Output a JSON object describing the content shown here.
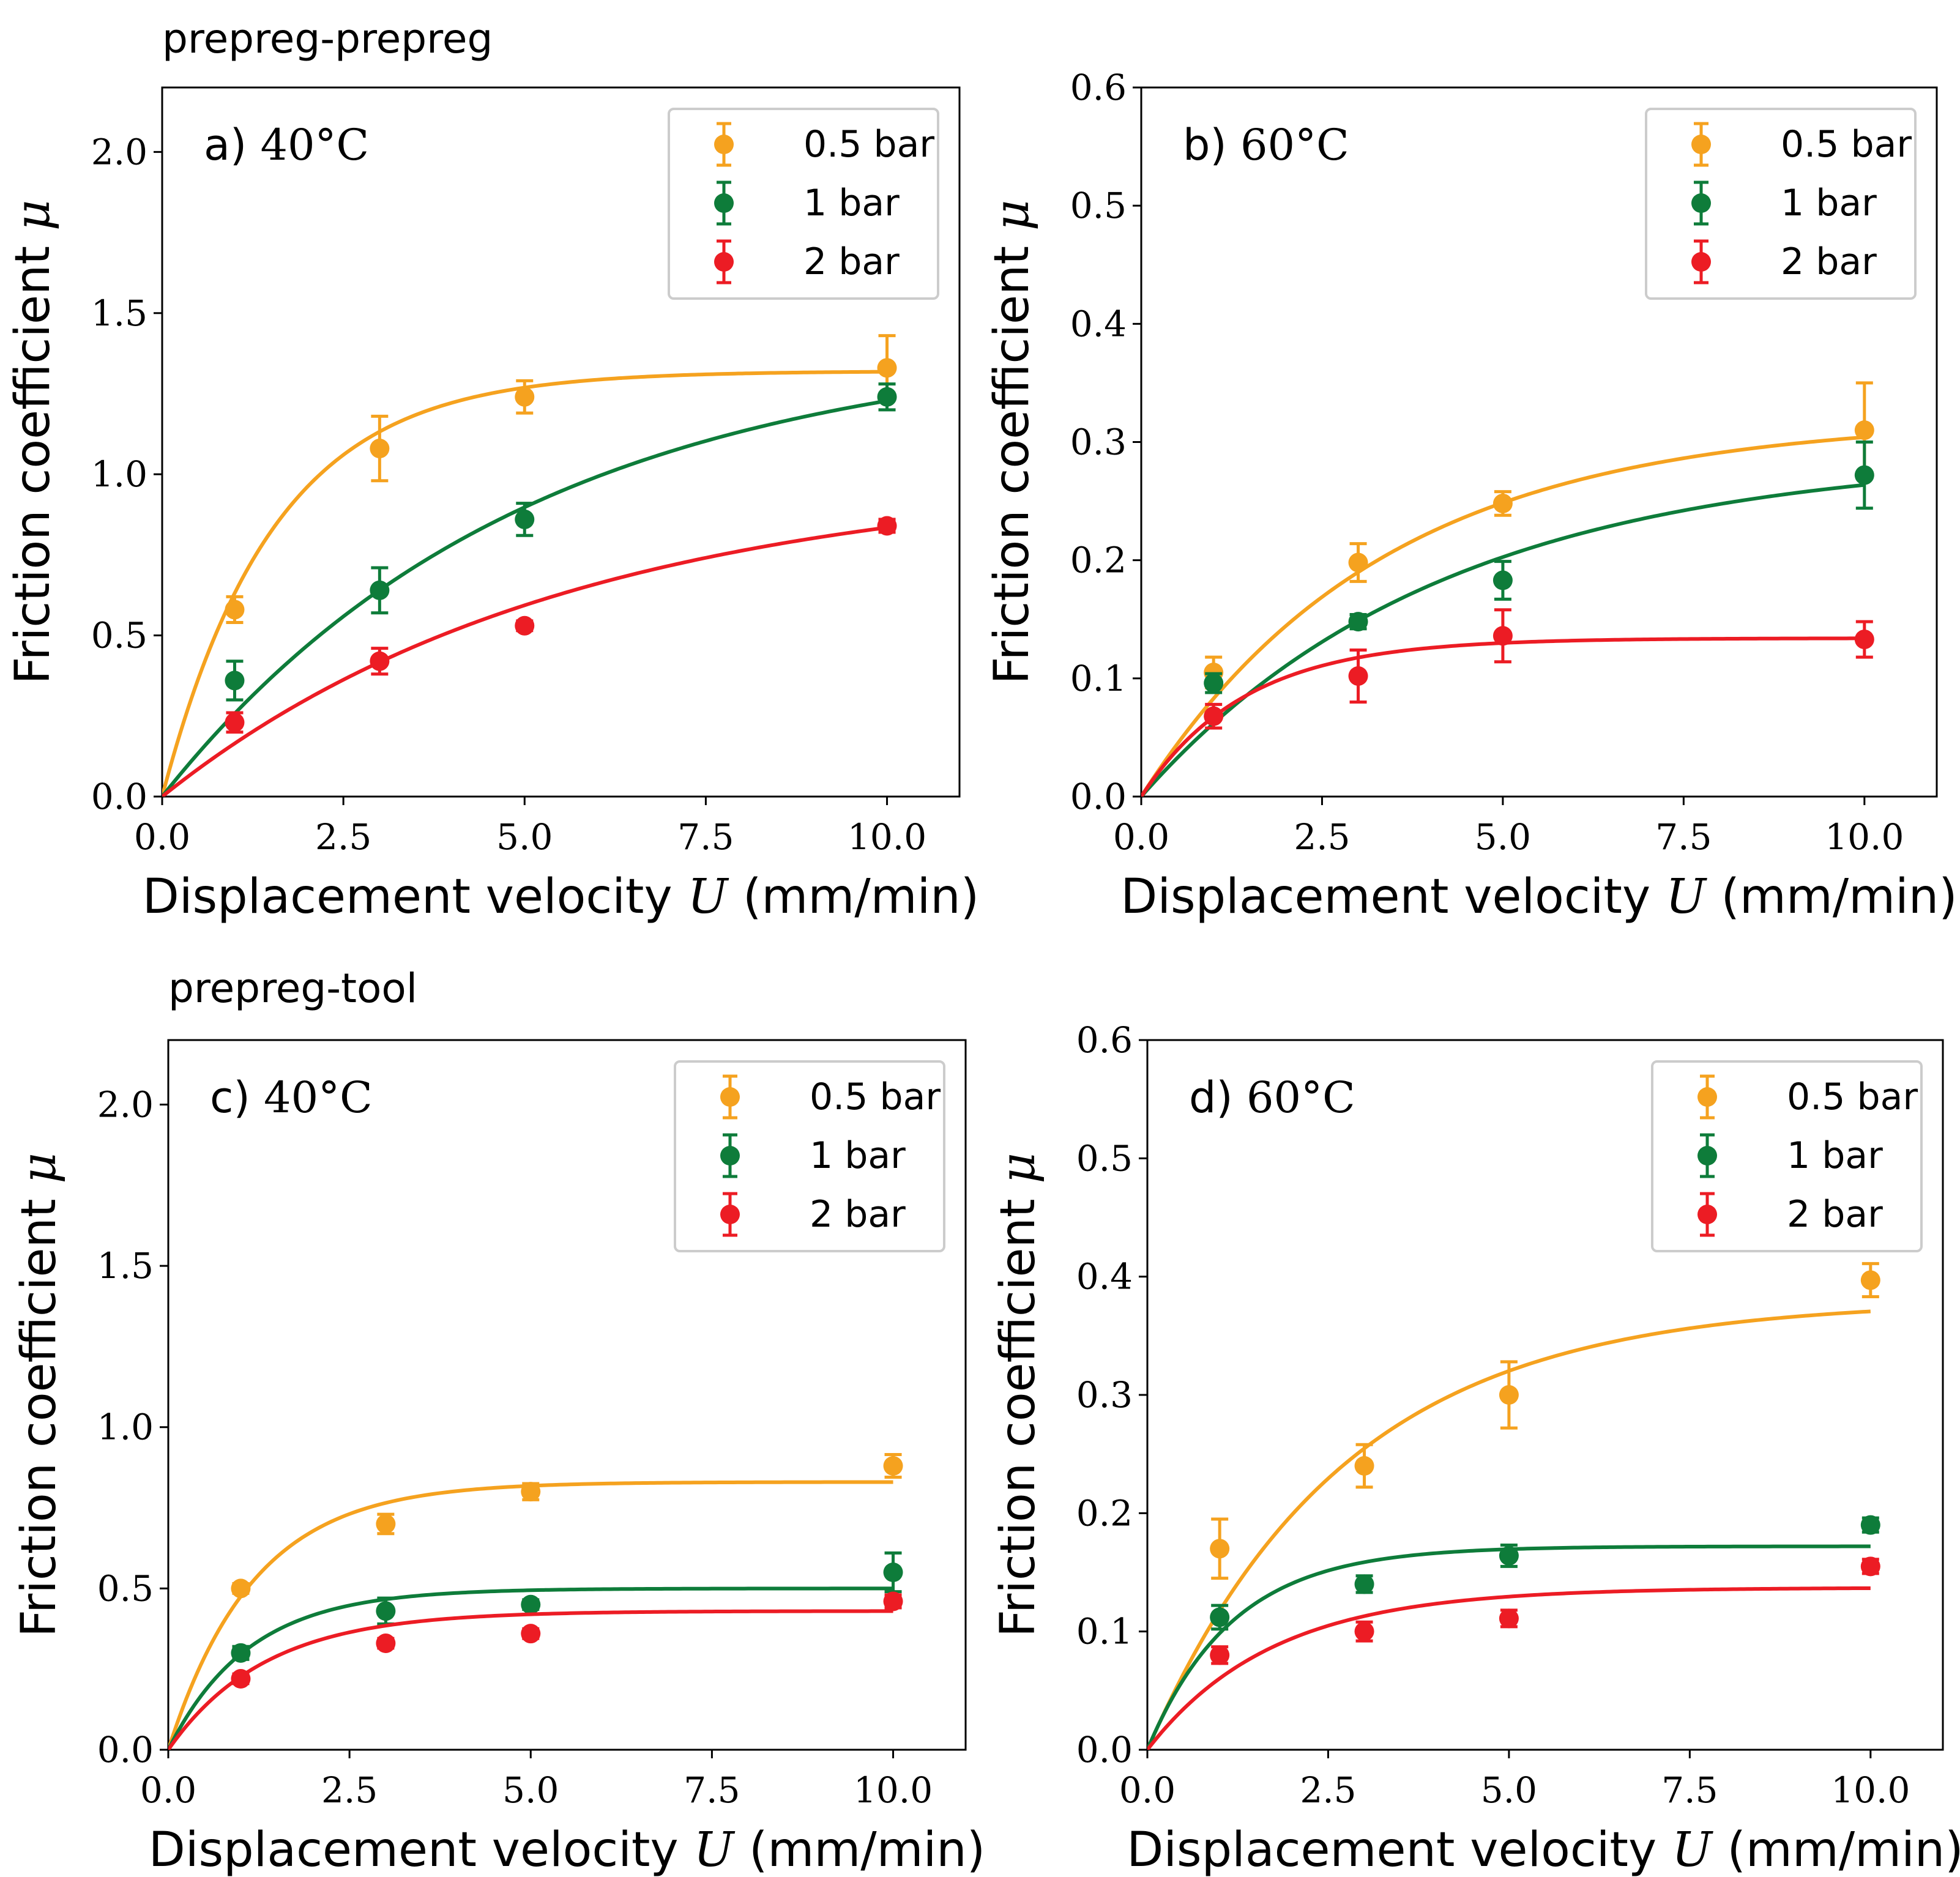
{
  "figure": {
    "row_titles": [
      "prepreg-prepreg",
      "prepreg-tool"
    ]
  },
  "colors": {
    "0.5 bar": "#F5A21F",
    "1 bar": "#0E7C3A",
    "2 bar": "#EC1C24",
    "axis": "#000000",
    "legend_border": "#cccccc"
  },
  "chart_data": [
    {
      "panel": "a",
      "type": "scatter",
      "label_prefix": "a)",
      "temperature": "40°C",
      "xlabel_prefix": "Displacement velocity",
      "xlabel_var": "U",
      "xlabel_unit": "(mm/min)",
      "ylabel_prefix": "Friction coefficient",
      "ylabel_var": "μ",
      "xlim": [
        0,
        11
      ],
      "ylim": [
        0,
        2.2
      ],
      "xticks": [
        "0.0",
        "2.5",
        "5.0",
        "7.5",
        "10.0"
      ],
      "xtick_values": [
        0,
        2.5,
        5,
        7.5,
        10
      ],
      "yticks": [
        "0.0",
        "0.5",
        "1.0",
        "1.5",
        "2.0"
      ],
      "ytick_values": [
        0,
        0.5,
        1.0,
        1.5,
        2.0
      ],
      "legend_position": "top-right",
      "series": [
        {
          "name": "0.5 bar",
          "x": [
            1,
            3,
            5,
            10
          ],
          "y": [
            0.58,
            1.08,
            1.24,
            1.33
          ],
          "err": [
            0.04,
            0.1,
            0.05,
            0.1
          ],
          "fit": {
            "a": 1.32,
            "k": 0.65
          }
        },
        {
          "name": "1 bar",
          "x": [
            1,
            3,
            5,
            10
          ],
          "y": [
            0.36,
            0.64,
            0.86,
            1.24
          ],
          "err": [
            0.06,
            0.07,
            0.05,
            0.04
          ],
          "fit": {
            "a": 1.42,
            "k": 0.2
          }
        },
        {
          "name": "2 bar",
          "x": [
            1,
            3,
            5,
            10
          ],
          "y": [
            0.23,
            0.42,
            0.53,
            0.84
          ],
          "err": [
            0.03,
            0.04,
            0.015,
            0.02
          ],
          "fit": {
            "a": 1.0,
            "k": 0.18
          }
        }
      ]
    },
    {
      "panel": "b",
      "type": "scatter",
      "label_prefix": "b)",
      "temperature": "60°C",
      "xlabel_prefix": "Displacement velocity",
      "xlabel_var": "U",
      "xlabel_unit": "(mm/min)",
      "ylabel_prefix": "Friction coefficient",
      "ylabel_var": "μ",
      "xlim": [
        0,
        11
      ],
      "ylim": [
        0,
        0.6
      ],
      "xticks": [
        "0.0",
        "2.5",
        "5.0",
        "7.5",
        "10.0"
      ],
      "xtick_values": [
        0,
        2.5,
        5,
        7.5,
        10
      ],
      "yticks": [
        "0.0",
        "0.1",
        "0.2",
        "0.3",
        "0.4",
        "0.5",
        "0.6"
      ],
      "ytick_values": [
        0,
        0.1,
        0.2,
        0.3,
        0.4,
        0.5,
        0.6
      ],
      "legend_position": "top-right",
      "series": [
        {
          "name": "0.5 bar",
          "x": [
            1,
            3,
            5,
            10
          ],
          "y": [
            0.105,
            0.198,
            0.248,
            0.31
          ],
          "err": [
            0.013,
            0.016,
            0.01,
            0.04
          ],
          "fit": {
            "a": 0.32,
            "k": 0.3
          }
        },
        {
          "name": "1 bar",
          "x": [
            1,
            3,
            5,
            10
          ],
          "y": [
            0.096,
            0.148,
            0.183,
            0.272
          ],
          "err": [
            0.008,
            0.006,
            0.016,
            0.028
          ],
          "fit": {
            "a": 0.29,
            "k": 0.24
          }
        },
        {
          "name": "2 bar",
          "x": [
            1,
            3,
            5,
            10
          ],
          "y": [
            0.068,
            0.102,
            0.136,
            0.133
          ],
          "err": [
            0.01,
            0.022,
            0.022,
            0.015
          ],
          "fit": {
            "a": 0.134,
            "k": 0.7
          }
        }
      ]
    },
    {
      "panel": "c",
      "type": "scatter",
      "label_prefix": "c)",
      "temperature": "40°C",
      "xlabel_prefix": "Displacement velocity",
      "xlabel_var": "U",
      "xlabel_unit": "(mm/min)",
      "ylabel_prefix": "Friction coefficient",
      "ylabel_var": "μ",
      "xlim": [
        0,
        11
      ],
      "ylim": [
        0,
        2.2
      ],
      "xticks": [
        "0.0",
        "2.5",
        "5.0",
        "7.5",
        "10.0"
      ],
      "xtick_values": [
        0,
        2.5,
        5,
        7.5,
        10
      ],
      "yticks": [
        "0.0",
        "0.5",
        "1.0",
        "1.5",
        "2.0"
      ],
      "ytick_values": [
        0,
        0.5,
        1.0,
        1.5,
        2.0
      ],
      "legend_position": "top-right",
      "series": [
        {
          "name": "0.5 bar",
          "x": [
            1,
            3,
            5,
            10
          ],
          "y": [
            0.5,
            0.7,
            0.8,
            0.88
          ],
          "err": [
            0.015,
            0.03,
            0.025,
            0.035
          ],
          "fit": {
            "a": 0.83,
            "k": 0.85
          }
        },
        {
          "name": "1 bar",
          "x": [
            1,
            3,
            5,
            10
          ],
          "y": [
            0.3,
            0.43,
            0.45,
            0.55
          ],
          "err": [
            0.02,
            0.04,
            0.015,
            0.06
          ],
          "fit": {
            "a": 0.5,
            "k": 0.9
          }
        },
        {
          "name": "2 bar",
          "x": [
            1,
            3,
            5,
            10
          ],
          "y": [
            0.22,
            0.33,
            0.36,
            0.46
          ],
          "err": [
            0.015,
            0.015,
            0.015,
            0.02
          ],
          "fit": {
            "a": 0.43,
            "k": 0.75
          }
        }
      ]
    },
    {
      "panel": "d",
      "type": "scatter",
      "label_prefix": "d)",
      "temperature": "60°C",
      "xlabel_prefix": "Displacement velocity",
      "xlabel_var": "U",
      "xlabel_unit": "(mm/min)",
      "ylabel_prefix": "Friction coefficient",
      "ylabel_var": "μ",
      "xlim": [
        0,
        11
      ],
      "ylim": [
        0,
        0.6
      ],
      "xticks": [
        "0.0",
        "2.5",
        "5.0",
        "7.5",
        "10.0"
      ],
      "xtick_values": [
        0,
        2.5,
        5,
        7.5,
        10
      ],
      "yticks": [
        "0.0",
        "0.1",
        "0.2",
        "0.3",
        "0.4",
        "0.5",
        "0.6"
      ],
      "ytick_values": [
        0,
        0.1,
        0.2,
        0.3,
        0.4,
        0.5,
        0.6
      ],
      "legend_position": "top-right",
      "series": [
        {
          "name": "0.5 bar",
          "x": [
            1,
            3,
            5,
            10
          ],
          "y": [
            0.17,
            0.24,
            0.3,
            0.397
          ],
          "err": [
            0.025,
            0.018,
            0.028,
            0.014
          ],
          "fit": {
            "a": 0.38,
            "k": 0.37
          }
        },
        {
          "name": "1 bar",
          "x": [
            1,
            3,
            5,
            10
          ],
          "y": [
            0.112,
            0.14,
            0.164,
            0.19
          ],
          "err": [
            0.01,
            0.007,
            0.009,
            0.006
          ],
          "fit": {
            "a": 0.172,
            "k": 0.85
          }
        },
        {
          "name": "2 bar",
          "x": [
            1,
            3,
            5,
            10
          ],
          "y": [
            0.08,
            0.1,
            0.111,
            0.155
          ],
          "err": [
            0.007,
            0.008,
            0.007,
            0.006
          ],
          "fit": {
            "a": 0.137,
            "k": 0.58
          }
        }
      ]
    }
  ]
}
